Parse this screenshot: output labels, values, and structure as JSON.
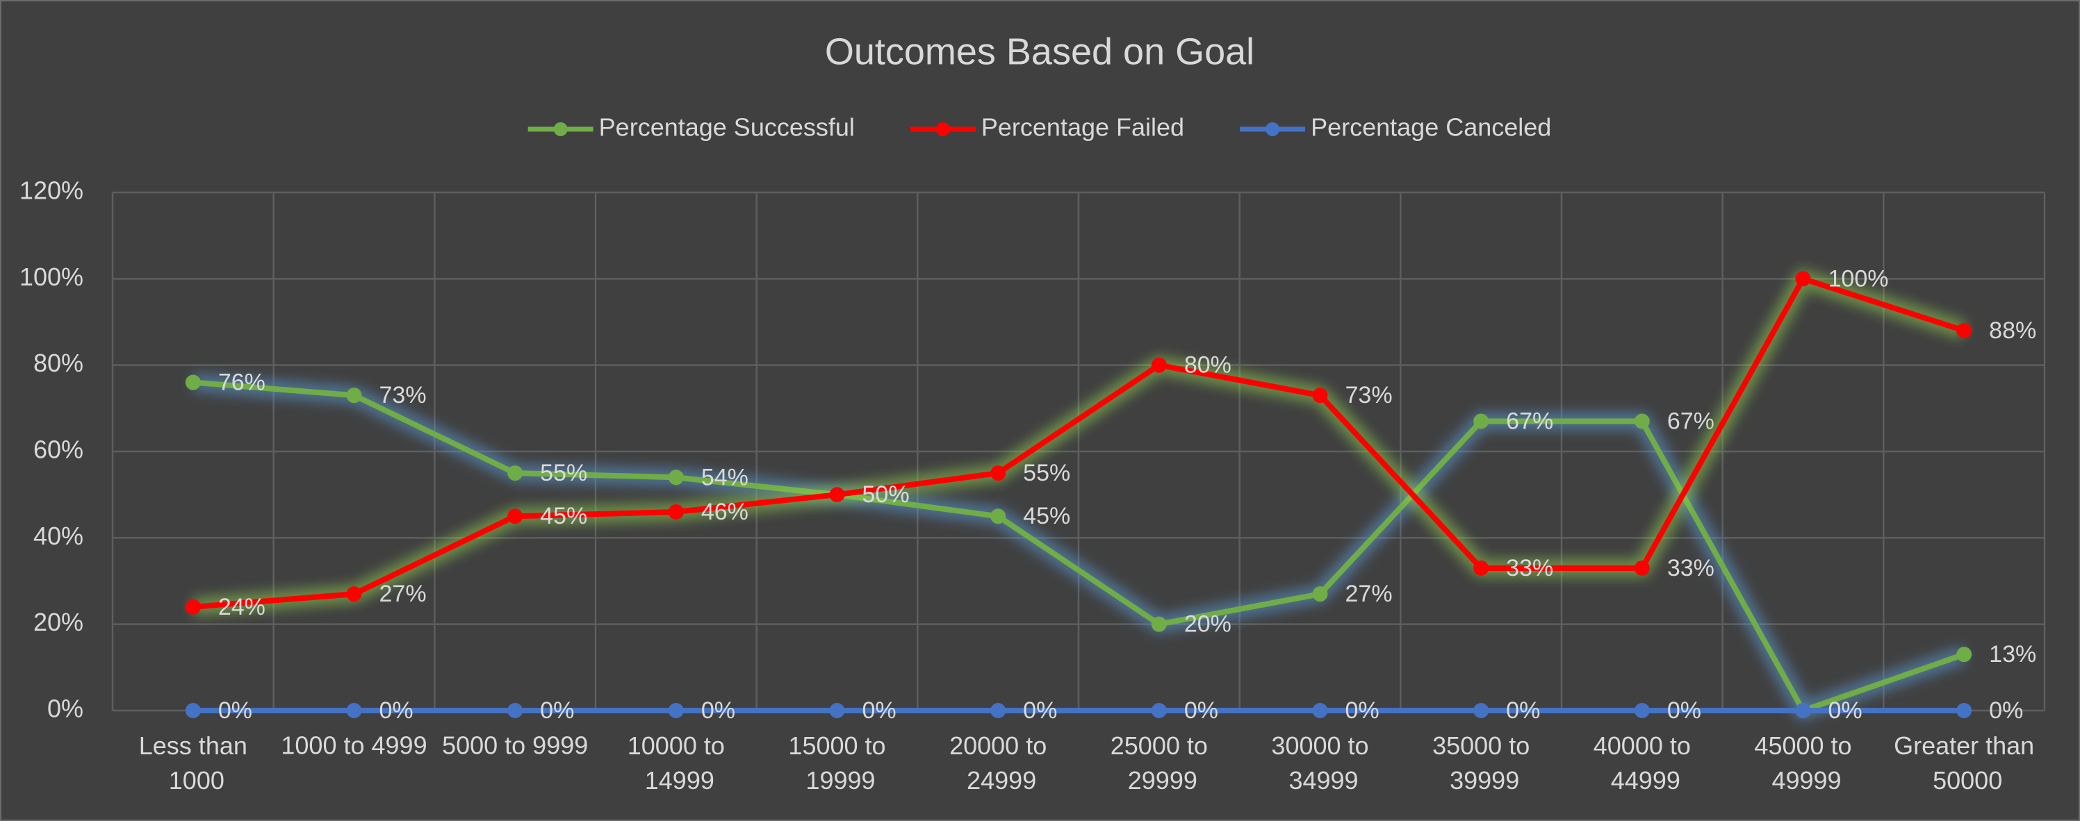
{
  "chart_data": {
    "type": "line",
    "title": "Outcomes Based on Goal",
    "categories": [
      "Less than 1000",
      "1000 to 4999",
      "5000 to 9999",
      "10000 to 14999",
      "15000 to 19999",
      "20000 to 24999",
      "25000 to 29999",
      "30000 to 34999",
      "35000 to 39999",
      "40000 to 44999",
      "45000 to 49999",
      "Greater than 50000"
    ],
    "series": [
      {
        "name": "Percentage Successful",
        "color": "#70ad47",
        "glow": "#5b9bd5",
        "values": [
          76,
          73,
          55,
          54,
          50,
          45,
          20,
          27,
          67,
          67,
          0,
          13
        ],
        "value_labels": [
          "76%",
          "73%",
          "55%",
          "54%",
          "50%",
          "45%",
          "20%",
          "27%",
          "67%",
          "67%",
          "0%",
          "13%"
        ]
      },
      {
        "name": "Percentage Failed",
        "color": "#ff0000",
        "glow": "#92d050",
        "values": [
          24,
          27,
          45,
          46,
          50,
          55,
          80,
          73,
          33,
          33,
          100,
          88
        ],
        "value_labels": [
          "24%",
          "27%",
          "45%",
          "46%",
          "50%",
          "55%",
          "80%",
          "73%",
          "33%",
          "33%",
          "100%",
          "88%"
        ]
      },
      {
        "name": "Percentage Canceled",
        "color": "#4472c4",
        "glow": "#2f5597",
        "values": [
          0,
          0,
          0,
          0,
          0,
          0,
          0,
          0,
          0,
          0,
          0,
          0
        ],
        "value_labels": [
          "0%",
          "0%",
          "0%",
          "0%",
          "0%",
          "0%",
          "0%",
          "0%",
          "0%",
          "0%",
          "0%",
          "0%"
        ]
      }
    ],
    "ylim": [
      0,
      120
    ],
    "yticks": [
      {
        "value": 0,
        "label": "0%"
      },
      {
        "value": 20,
        "label": "20%"
      },
      {
        "value": 40,
        "label": "40%"
      },
      {
        "value": 60,
        "label": "60%"
      },
      {
        "value": 80,
        "label": "80%"
      },
      {
        "value": 100,
        "label": "100%"
      },
      {
        "value": 120,
        "label": "120%"
      }
    ],
    "grid": true,
    "legend": "top"
  }
}
